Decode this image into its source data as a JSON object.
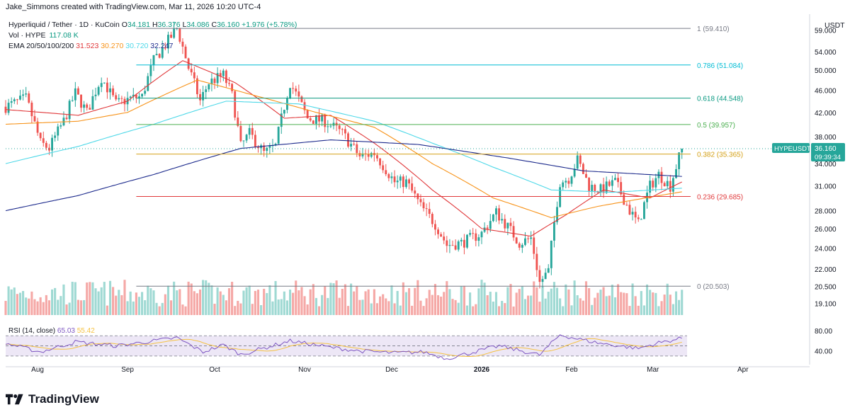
{
  "header": {
    "attribution": "Jake_Simmons created with TradingView.com, Mar 11, 2026 10:20 UTC-4"
  },
  "legend": {
    "symbol": "Hyperliquid / Tether · 1D · KuCoin",
    "ohlc": [
      {
        "label": "O",
        "value": "34.181"
      },
      {
        "label": "H",
        "value": "36.376"
      },
      {
        "label": "L",
        "value": "34.086"
      },
      {
        "label": "C",
        "value": "36.160"
      }
    ],
    "change": "+1.976 (+5.78%)",
    "volume_label": "Vol · HYPE",
    "volume_value": "117.08 K",
    "ema_label": "EMA 20/50/100/200",
    "ema_values": [
      {
        "value": "31.523",
        "color": "#e0383a"
      },
      {
        "value": "30.270",
        "color": "#f7931a"
      },
      {
        "value": "30.720",
        "color": "#4dd8e8"
      },
      {
        "value": "32.247",
        "color": "#1c2a8c"
      }
    ],
    "rsi_label": "RSI (14, close)",
    "rsi_value": "65.03",
    "rsi_ma_value": "55.42"
  },
  "colors": {
    "up": "#26a69a",
    "down": "#ef5350",
    "vol_up": "#9fd9d3",
    "vol_down": "#f5a8a6",
    "rsi_line": "#7e57c2",
    "rsi_ma": "#f5c242",
    "rsi_band": "#ede7f6"
  },
  "chart_data": {
    "type": "candlestick",
    "currency": "USDT",
    "y_scale": "log",
    "ylim": [
      18.2,
      63
    ],
    "y_ticks": [
      "59.000",
      "54.000",
      "50.000",
      "46.000",
      "42.000",
      "38.000",
      "34.000",
      "31.000",
      "28.000",
      "26.000",
      "24.000",
      "22.000",
      "20.500",
      "19.100"
    ],
    "x_ticks": [
      "Aug",
      "Sep",
      "Oct",
      "Nov",
      "Dec",
      "2026",
      "Feb",
      "Mar",
      "Apr"
    ],
    "x_range": [
      "2025-07-21",
      "2026-04-24"
    ],
    "x_ticks_dates": [
      "2025-08-01",
      "2025-09-01",
      "2025-10-01",
      "2025-11-01",
      "2025-12-01",
      "2026-01-01",
      "2026-02-01",
      "2026-03-01",
      "2026-04-01"
    ],
    "last_price": {
      "label": "HYPEUSDT",
      "price": "36.160",
      "countdown": "09:39:34",
      "value": 36.16
    },
    "fib_levels": [
      {
        "label": "1 (59.410)",
        "value": 59.41,
        "color": "#787b86"
      },
      {
        "label": "0.786 (51.084)",
        "value": 51.084,
        "color": "#00bcd4"
      },
      {
        "label": "0.618 (44.548)",
        "value": 44.548,
        "color": "#089981"
      },
      {
        "label": "0.5 (39.957)",
        "value": 39.957,
        "color": "#4caf50"
      },
      {
        "label": "0.382 (35.365)",
        "value": 35.365,
        "color": "#d4a017"
      },
      {
        "label": "0.236 (29.685)",
        "value": 29.685,
        "color": "#e0383a"
      },
      {
        "label": "0 (20.503)",
        "value": 20.503,
        "color": "#787b86"
      }
    ],
    "fib_start": "2025-09-04",
    "price_keypoints": [
      [
        "2025-07-21",
        43.0
      ],
      [
        "2025-07-28",
        44.5
      ],
      [
        "2025-08-02",
        37.0
      ],
      [
        "2025-08-05",
        36.2
      ],
      [
        "2025-08-10",
        40.5
      ],
      [
        "2025-08-14",
        45.5
      ],
      [
        "2025-08-18",
        42.0
      ],
      [
        "2025-08-23",
        48.5
      ],
      [
        "2025-08-28",
        43.5
      ],
      [
        "2025-09-02",
        44.5
      ],
      [
        "2025-09-06",
        44.8
      ],
      [
        "2025-09-10",
        52.0
      ],
      [
        "2025-09-14",
        55.5
      ],
      [
        "2025-09-18",
        59.4
      ],
      [
        "2025-09-22",
        50.5
      ],
      [
        "2025-09-26",
        44.0
      ],
      [
        "2025-09-29",
        47.5
      ],
      [
        "2025-10-04",
        49.0
      ],
      [
        "2025-10-07",
        45.0
      ],
      [
        "2025-10-10",
        36.5
      ],
      [
        "2025-10-13",
        38.5
      ],
      [
        "2025-10-18",
        35.5
      ],
      [
        "2025-10-22",
        36.5
      ],
      [
        "2025-10-27",
        47.5
      ],
      [
        "2025-11-02",
        41.0
      ],
      [
        "2025-11-08",
        40.5
      ],
      [
        "2025-11-14",
        38.5
      ],
      [
        "2025-11-20",
        35.0
      ],
      [
        "2025-11-25",
        35.5
      ],
      [
        "2025-12-02",
        31.5
      ],
      [
        "2025-12-06",
        31.5
      ],
      [
        "2025-12-11",
        28.5
      ],
      [
        "2025-12-16",
        26.5
      ],
      [
        "2025-12-20",
        24.3
      ],
      [
        "2025-12-25",
        24.5
      ],
      [
        "2026-01-01",
        25.5
      ],
      [
        "2026-01-06",
        27.8
      ],
      [
        "2026-01-10",
        26.2
      ],
      [
        "2026-01-14",
        24.5
      ],
      [
        "2026-01-18",
        25.0
      ],
      [
        "2026-01-21",
        20.8
      ],
      [
        "2026-01-24",
        21.8
      ],
      [
        "2026-01-28",
        31.5
      ],
      [
        "2026-01-31",
        32.0
      ],
      [
        "2026-02-03",
        34.5
      ],
      [
        "2026-02-07",
        31.0
      ],
      [
        "2026-02-11",
        30.5
      ],
      [
        "2026-02-16",
        31.5
      ],
      [
        "2026-02-21",
        28.0
      ],
      [
        "2026-02-24",
        26.5
      ],
      [
        "2026-02-28",
        31.0
      ],
      [
        "2026-03-03",
        32.5
      ],
      [
        "2026-03-07",
        31.0
      ],
      [
        "2026-03-11",
        36.16
      ]
    ],
    "ema_keypoints": {
      "ema20": [
        [
          "2025-07-21",
          42.5
        ],
        [
          "2025-08-15",
          41.5
        ],
        [
          "2025-09-01",
          44.0
        ],
        [
          "2025-09-20",
          52.0
        ],
        [
          "2025-10-08",
          47.5
        ],
        [
          "2025-10-25",
          41.0
        ],
        [
          "2025-11-10",
          41.5
        ],
        [
          "2025-11-25",
          37.0
        ],
        [
          "2025-12-15",
          30.5
        ],
        [
          "2026-01-01",
          26.0
        ],
        [
          "2026-01-18",
          25.2
        ],
        [
          "2026-01-30",
          27.5
        ],
        [
          "2026-02-12",
          30.5
        ],
        [
          "2026-02-28",
          29.5
        ],
        [
          "2026-03-11",
          31.52
        ]
      ],
      "ema50": [
        [
          "2025-07-21",
          40.0
        ],
        [
          "2025-08-15",
          40.5
        ],
        [
          "2025-09-01",
          42.0
        ],
        [
          "2025-09-25",
          48.0
        ],
        [
          "2025-10-15",
          45.0
        ],
        [
          "2025-11-05",
          42.0
        ],
        [
          "2025-11-25",
          39.5
        ],
        [
          "2025-12-15",
          34.0
        ],
        [
          "2026-01-05",
          29.5
        ],
        [
          "2026-01-25",
          27.2
        ],
        [
          "2026-02-10",
          28.5
        ],
        [
          "2026-03-11",
          30.27
        ]
      ],
      "ema100": [
        [
          "2025-07-21",
          34.0
        ],
        [
          "2025-08-15",
          36.5
        ],
        [
          "2025-09-10",
          40.0
        ],
        [
          "2025-10-05",
          44.0
        ],
        [
          "2025-10-30",
          43.5
        ],
        [
          "2025-11-25",
          40.5
        ],
        [
          "2025-12-15",
          37.0
        ],
        [
          "2026-01-05",
          33.5
        ],
        [
          "2026-01-25",
          30.5
        ],
        [
          "2026-02-15",
          30.2
        ],
        [
          "2026-03-11",
          30.72
        ]
      ],
      "ema200": [
        [
          "2025-07-21",
          28.0
        ],
        [
          "2025-08-15",
          29.8
        ],
        [
          "2025-09-10",
          32.5
        ],
        [
          "2025-10-10",
          36.2
        ],
        [
          "2025-11-10",
          37.5
        ],
        [
          "2025-12-10",
          36.8
        ],
        [
          "2026-01-10",
          34.8
        ],
        [
          "2026-02-05",
          33.0
        ],
        [
          "2026-03-11",
          32.25
        ]
      ]
    },
    "rsi": {
      "ticks": [
        "80.00",
        "40.00"
      ],
      "ylim": [
        20,
        90
      ],
      "levels": [
        70,
        50,
        30
      ],
      "keypoints": [
        [
          "2025-07-21",
          55
        ],
        [
          "2025-08-02",
          38
        ],
        [
          "2025-08-14",
          58
        ],
        [
          "2025-08-28",
          50
        ],
        [
          "2025-09-18",
          66
        ],
        [
          "2025-09-27",
          38
        ],
        [
          "2025-10-04",
          52
        ],
        [
          "2025-10-10",
          33
        ],
        [
          "2025-10-27",
          60
        ],
        [
          "2025-11-10",
          47
        ],
        [
          "2025-11-20",
          40
        ],
        [
          "2025-12-02",
          36
        ],
        [
          "2025-12-12",
          38
        ],
        [
          "2025-12-20",
          25
        ],
        [
          "2026-01-07",
          50
        ],
        [
          "2026-01-21",
          32
        ],
        [
          "2026-01-28",
          72
        ],
        [
          "2026-02-03",
          64
        ],
        [
          "2026-02-11",
          55
        ],
        [
          "2026-02-24",
          45
        ],
        [
          "2026-03-03",
          56
        ],
        [
          "2026-03-11",
          65.03
        ]
      ]
    }
  }
}
